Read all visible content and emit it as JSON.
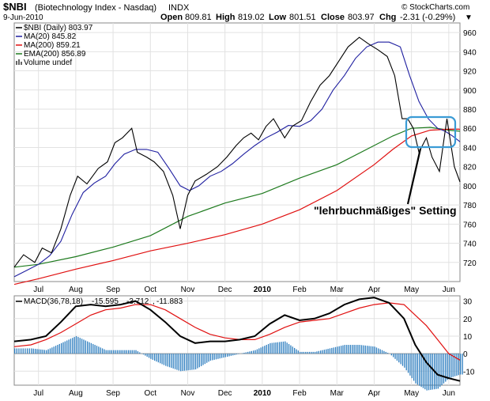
{
  "header": {
    "symbol": "$NBI",
    "description": "(Biotechnology Index - Nasdaq)",
    "exchange": "INDX",
    "date": "9-Jun-2010",
    "open_label": "Open",
    "open": "809.81",
    "high_label": "High",
    "high": "819.02",
    "low_label": "Low",
    "low": "801.51",
    "close_label": "Close",
    "close": "803.97",
    "chg_label": "Chg",
    "chg": "-2.31 (-0.29%)",
    "chg_marker": "▼",
    "watermark": "© StockCharts.com"
  },
  "legend": {
    "price": "$NBI (Daily) 803.97",
    "ma20": "MA(20) 845.82",
    "ma200": "MA(200) 859.21",
    "ema200": "EMA(200) 856.89",
    "volume": "Volume undef"
  },
  "macd_legend": {
    "label": "MACD(36,78,18)",
    "macd": "-15.595",
    "signal": "-3.712",
    "hist": "-11.883"
  },
  "annotation": "\"lehrbuchmäßiges\" Setting",
  "colors": {
    "price": "#000000",
    "ma20": "#1f1fa0",
    "ma200": "#e01010",
    "ema200": "#1e7a1e",
    "macd_line": "#000000",
    "signal_line": "#e01010",
    "histogram": "#2f7fc0",
    "highlight": "#3a9bd5",
    "down_bar": "#a0002a"
  },
  "chart_data": [
    {
      "type": "line",
      "title": "$NBI (Biotechnology Index - Nasdaq) INDX",
      "x_tick_labels": [
        "Jul",
        "Aug",
        "Sep",
        "Oct",
        "Nov",
        "Dec",
        "2010",
        "Feb",
        "Mar",
        "Apr",
        "May",
        "Jun"
      ],
      "x_ticks_month_index": [
        1,
        2,
        3,
        4,
        5,
        6,
        7,
        8,
        9,
        10,
        11,
        12
      ],
      "x_range_month_index": [
        0.35,
        12.3
      ],
      "ylim": [
        700,
        970
      ],
      "y_ticks": [
        720,
        740,
        760,
        780,
        800,
        820,
        840,
        860,
        880,
        900,
        920,
        940,
        960
      ],
      "grid": true,
      "series": [
        {
          "name": "$NBI (Daily)",
          "key": "price",
          "x": [
            0.35,
            0.6,
            0.9,
            1.1,
            1.35,
            1.6,
            1.85,
            2.05,
            2.3,
            2.6,
            2.85,
            3.05,
            3.25,
            3.5,
            3.65,
            3.9,
            4.1,
            4.35,
            4.6,
            4.8,
            5.0,
            5.2,
            5.5,
            5.8,
            6.05,
            6.3,
            6.5,
            6.7,
            6.9,
            7.1,
            7.3,
            7.6,
            7.8,
            8.05,
            8.3,
            8.55,
            8.8,
            9.05,
            9.3,
            9.6,
            9.85,
            10.1,
            10.35,
            10.55,
            10.75,
            10.9,
            11.05,
            11.2,
            11.4,
            11.55,
            11.75,
            11.95,
            12.15,
            12.3
          ],
          "y": [
            715,
            728,
            720,
            735,
            730,
            755,
            790,
            810,
            802,
            818,
            825,
            845,
            850,
            860,
            835,
            830,
            825,
            815,
            790,
            755,
            790,
            805,
            812,
            820,
            830,
            842,
            850,
            855,
            848,
            862,
            870,
            850,
            862,
            868,
            888,
            905,
            915,
            930,
            945,
            955,
            948,
            942,
            935,
            915,
            870,
            870,
            860,
            835,
            850,
            830,
            815,
            870,
            820,
            804
          ]
        },
        {
          "name": "MA(20)",
          "key": "ma20",
          "x": [
            0.35,
            0.7,
            1.0,
            1.3,
            1.6,
            1.9,
            2.2,
            2.5,
            2.8,
            3.05,
            3.3,
            3.6,
            3.9,
            4.2,
            4.5,
            4.8,
            5.05,
            5.3,
            5.6,
            5.9,
            6.2,
            6.5,
            6.8,
            7.1,
            7.4,
            7.7,
            8.0,
            8.3,
            8.6,
            8.9,
            9.2,
            9.5,
            9.8,
            10.1,
            10.4,
            10.7,
            10.95,
            11.2,
            11.45,
            11.7,
            11.9,
            12.1,
            12.3
          ],
          "y": [
            705,
            712,
            718,
            727,
            742,
            770,
            793,
            803,
            810,
            823,
            833,
            838,
            838,
            835,
            818,
            800,
            795,
            800,
            810,
            815,
            823,
            833,
            842,
            850,
            856,
            863,
            862,
            868,
            880,
            900,
            915,
            933,
            945,
            950,
            950,
            945,
            915,
            888,
            870,
            860,
            857,
            852,
            846
          ]
        },
        {
          "name": "MA(200)",
          "key": "ma200",
          "x": [
            0.35,
            1,
            2,
            3,
            4,
            5,
            6,
            7,
            8,
            9,
            10,
            10.5,
            11,
            11.5,
            12,
            12.3
          ],
          "y": [
            697,
            703,
            713,
            722,
            732,
            740,
            749,
            760,
            775,
            795,
            822,
            838,
            852,
            858,
            859,
            859
          ]
        },
        {
          "name": "EMA(200)",
          "key": "ema200",
          "x": [
            0.35,
            1,
            2,
            3,
            4,
            5,
            6,
            7,
            8,
            9,
            10,
            10.5,
            11,
            11.5,
            12,
            12.3
          ],
          "y": [
            715,
            718,
            726,
            736,
            748,
            768,
            782,
            792,
            808,
            822,
            842,
            852,
            860,
            861,
            858,
            857
          ]
        }
      ]
    },
    {
      "type": "line",
      "title": "MACD(36,78,18)",
      "ylim": [
        -18,
        33
      ],
      "y_ticks": [
        -10,
        0,
        10,
        20,
        30
      ],
      "grid": true,
      "series": [
        {
          "name": "MACD",
          "key": "macd",
          "x": [
            0.35,
            0.8,
            1.2,
            1.6,
            2.0,
            2.4,
            2.8,
            3.2,
            3.6,
            4.0,
            4.4,
            4.8,
            5.2,
            5.6,
            6.0,
            6.4,
            6.8,
            7.2,
            7.6,
            8.0,
            8.4,
            8.8,
            9.2,
            9.6,
            10.0,
            10.4,
            10.8,
            11.1,
            11.4,
            11.7,
            12.0,
            12.3
          ],
          "y": [
            7,
            8,
            10,
            18,
            27,
            28,
            27,
            28,
            30,
            25,
            18,
            10,
            6,
            7,
            7,
            8,
            10,
            17,
            22,
            19,
            20,
            23,
            28,
            31,
            32,
            29,
            20,
            5,
            -5,
            -12,
            -14,
            -15.6
          ]
        },
        {
          "name": "Signal",
          "key": "signal",
          "x": [
            0.35,
            0.8,
            1.2,
            1.6,
            2.0,
            2.4,
            2.8,
            3.2,
            3.6,
            4.0,
            4.4,
            4.8,
            5.2,
            5.6,
            6.0,
            6.4,
            6.8,
            7.2,
            7.6,
            8.0,
            8.4,
            8.8,
            9.2,
            9.6,
            10.0,
            10.4,
            10.8,
            11.1,
            11.4,
            11.7,
            12.0,
            12.3
          ],
          "y": [
            4,
            5,
            8,
            12,
            17,
            22,
            25,
            26,
            28,
            28,
            25,
            20,
            15,
            11,
            9,
            8,
            8,
            11,
            15,
            18,
            19,
            20,
            23,
            26,
            28,
            29,
            28,
            22,
            16,
            8,
            0,
            -3.7
          ]
        }
      ],
      "histogram": {
        "x": [
          0.35,
          0.8,
          1.2,
          1.6,
          2.0,
          2.4,
          2.8,
          3.2,
          3.6,
          4.0,
          4.4,
          4.8,
          5.2,
          5.6,
          6.0,
          6.4,
          6.8,
          7.2,
          7.6,
          8.0,
          8.4,
          8.8,
          9.2,
          9.6,
          10.0,
          10.4,
          10.8,
          11.1,
          11.4,
          11.7,
          12.0,
          12.3
        ],
        "y": [
          3,
          3,
          2,
          6,
          10,
          6,
          2,
          2,
          2,
          -3,
          -7,
          -10,
          -9,
          -4,
          -2,
          0,
          2,
          6,
          7,
          1,
          1,
          3,
          5,
          5,
          4,
          0,
          -8,
          -17,
          -21,
          -20,
          -14,
          -11.9
        ]
      },
      "x_tick_labels": [
        "Jul",
        "Aug",
        "Sep",
        "Oct",
        "Nov",
        "Dec",
        "2010",
        "Feb",
        "Mar",
        "Apr",
        "May",
        "Jun"
      ]
    }
  ]
}
